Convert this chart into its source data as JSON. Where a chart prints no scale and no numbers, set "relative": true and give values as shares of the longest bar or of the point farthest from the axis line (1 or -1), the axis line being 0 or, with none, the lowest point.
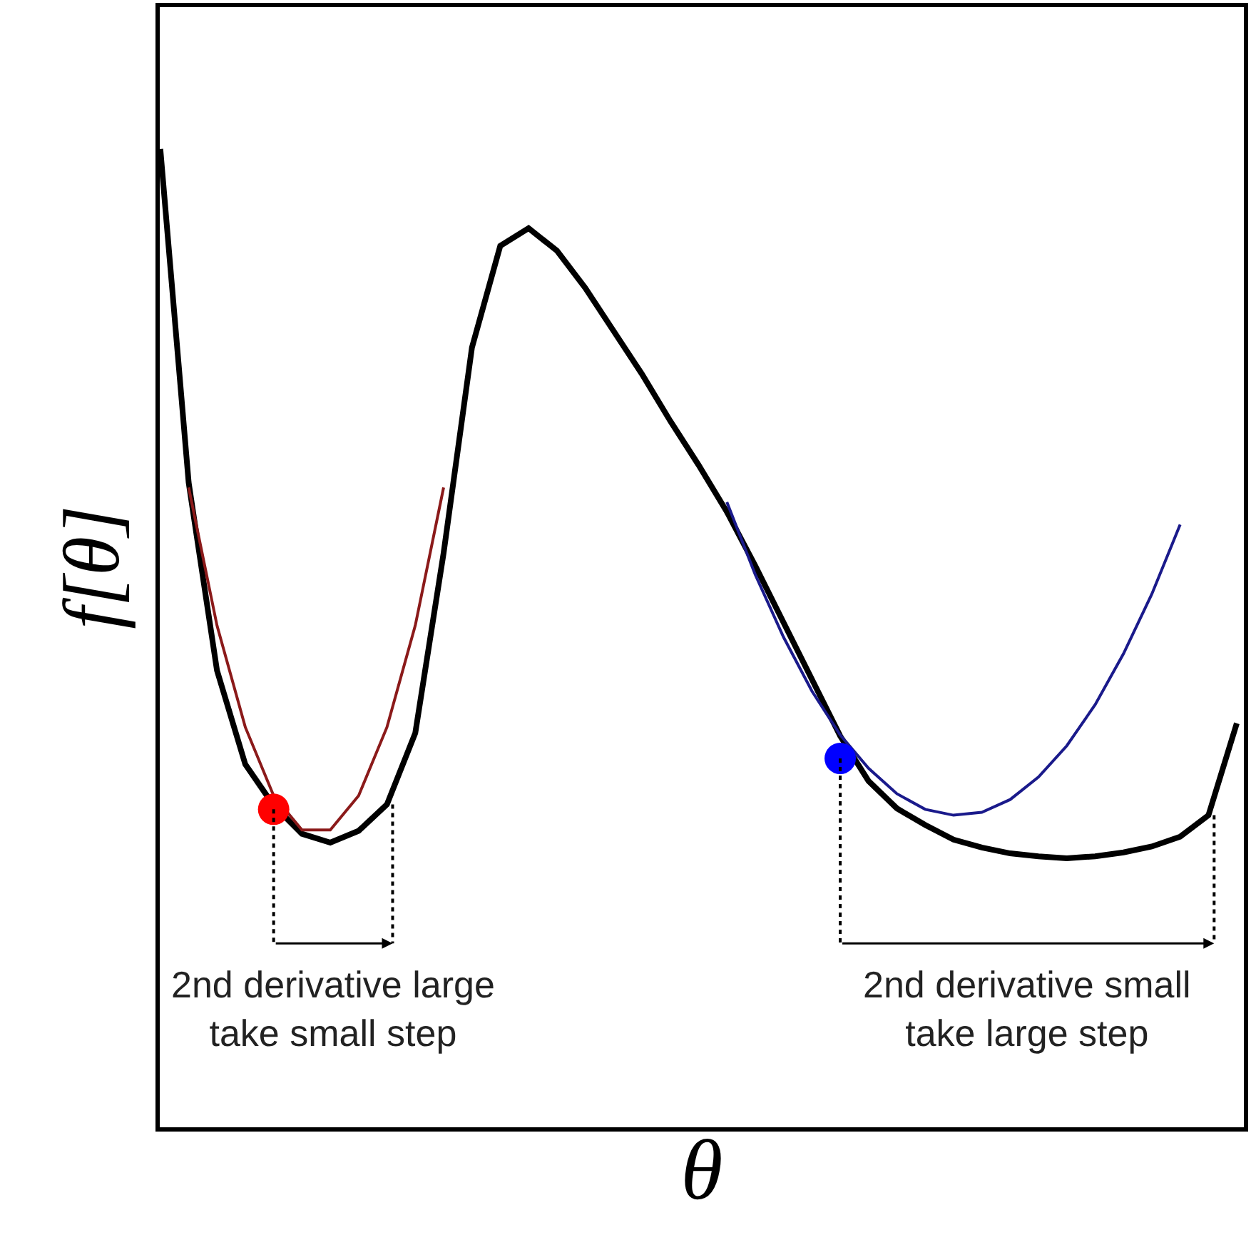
{
  "chart_data": {
    "type": "line",
    "relative": true,
    "xlabel": "θ",
    "ylabel": "f[θ]",
    "categories": [
      null,
      null,
      null,
      null,
      null,
      null,
      null,
      null,
      null,
      null,
      null,
      null,
      null,
      null,
      null,
      null,
      null,
      null,
      null,
      null,
      null,
      null,
      null,
      null,
      null,
      null,
      null,
      null,
      null,
      null,
      null,
      null,
      null,
      null,
      null,
      null,
      null,
      null,
      null
    ],
    "series": [
      {
        "color": "#000000",
        "values": [
          1.0,
          0.659,
          0.467,
          0.371,
          0.329,
          0.3,
          0.291,
          0.303,
          0.33,
          0.403,
          0.587,
          0.797,
          0.901,
          0.919,
          0.896,
          0.858,
          0.814,
          0.77,
          0.722,
          0.677,
          0.629,
          0.574,
          0.516,
          0.458,
          0.4,
          0.354,
          0.326,
          0.309,
          0.294,
          0.286,
          0.28,
          0.277,
          0.275,
          0.277,
          0.281,
          0.287,
          0.297,
          0.319,
          0.413
        ]
      },
      {
        "color": "#8b1a1a",
        "values": [
          null,
          0.654,
          0.513,
          0.409,
          0.339,
          0.304,
          0.304,
          0.339,
          0.409,
          0.513,
          0.654,
          null,
          null,
          null,
          null,
          null,
          null,
          null,
          null,
          null,
          null,
          null,
          null,
          null,
          null,
          null,
          null,
          null,
          null,
          null,
          null,
          null,
          null,
          null,
          null,
          null,
          null,
          null,
          null
        ]
      },
      {
        "color": "#1a1a8b",
        "values": [
          null,
          null,
          null,
          null,
          null,
          null,
          null,
          null,
          null,
          null,
          null,
          null,
          null,
          null,
          null,
          null,
          null,
          null,
          null,
          null,
          0.639,
          0.565,
          0.501,
          0.446,
          0.401,
          0.367,
          0.341,
          0.325,
          0.319,
          0.322,
          0.335,
          0.358,
          0.39,
          0.432,
          0.484,
          0.545,
          0.616,
          null,
          null
        ]
      },
      {
        "marker": "circle",
        "color": "#ff0000",
        "values": [
          null,
          null,
          null,
          null,
          0.325,
          null,
          null,
          null,
          null,
          null,
          null,
          null,
          null,
          null,
          null,
          null,
          null,
          null,
          null,
          null,
          null,
          null,
          null,
          null,
          null,
          null,
          null,
          null,
          null,
          null,
          null,
          null,
          null,
          null,
          null,
          null,
          null,
          null,
          null
        ]
      },
      {
        "marker": "circle",
        "color": "#0000ff",
        "values": [
          null,
          null,
          null,
          null,
          null,
          null,
          null,
          null,
          null,
          null,
          null,
          null,
          null,
          null,
          null,
          null,
          null,
          null,
          null,
          null,
          null,
          null,
          null,
          null,
          0.377,
          null,
          null,
          null,
          null,
          null,
          null,
          null,
          null,
          null,
          null,
          null,
          null,
          null,
          null
        ]
      }
    ],
    "annotations": [
      "2nd derivative large\ntake small step",
      "2nd derivative small\ntake large step"
    ]
  }
}
